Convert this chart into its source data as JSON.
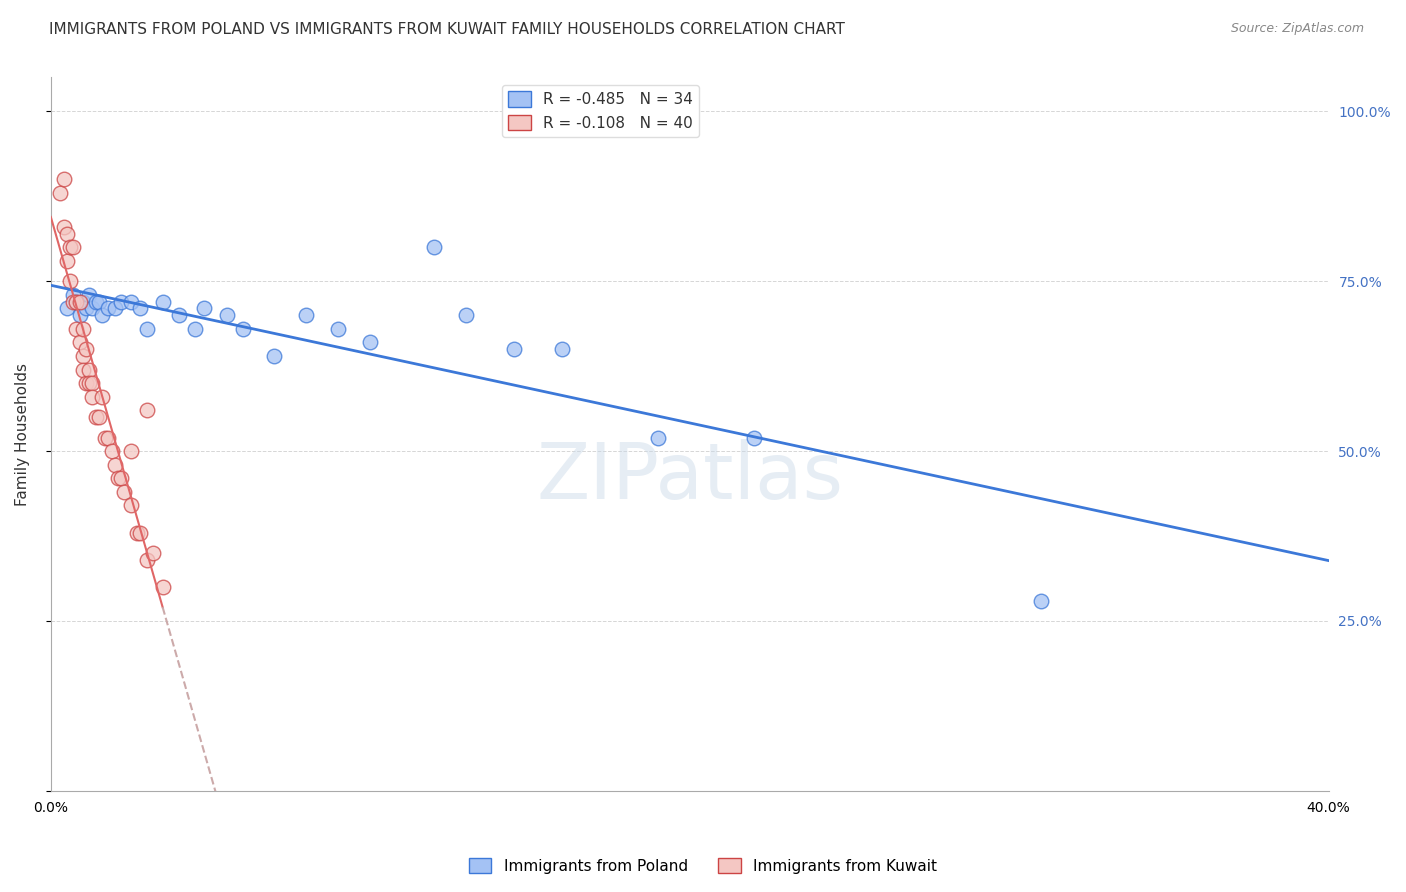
{
  "title": "IMMIGRANTS FROM POLAND VS IMMIGRANTS FROM KUWAIT FAMILY HOUSEHOLDS CORRELATION CHART",
  "source": "Source: ZipAtlas.com",
  "ylabel": "Family Households",
  "xlim": [
    0.0,
    0.4
  ],
  "ylim": [
    0.0,
    1.05
  ],
  "y_ticks": [
    0.0,
    0.25,
    0.5,
    0.75,
    1.0
  ],
  "y_tick_labels": [
    "",
    "25.0%",
    "50.0%",
    "75.0%",
    "100.0%"
  ],
  "poland_R": -0.485,
  "poland_N": 34,
  "kuwait_R": -0.108,
  "kuwait_N": 40,
  "poland_face_color": "#a4c2f4",
  "poland_edge_color": "#3c78d8",
  "kuwait_face_color": "#f4c7c3",
  "kuwait_edge_color": "#cc4444",
  "poland_line_color": "#3c78d8",
  "kuwait_solid_color": "#e06666",
  "kuwait_dash_color": "#ccaaaa",
  "poland_x": [
    0.005,
    0.007,
    0.008,
    0.009,
    0.01,
    0.011,
    0.012,
    0.013,
    0.014,
    0.015,
    0.016,
    0.018,
    0.02,
    0.022,
    0.025,
    0.028,
    0.03,
    0.035,
    0.04,
    0.045,
    0.048,
    0.055,
    0.06,
    0.07,
    0.08,
    0.09,
    0.1,
    0.12,
    0.13,
    0.145,
    0.16,
    0.19,
    0.22,
    0.31
  ],
  "poland_y": [
    0.71,
    0.73,
    0.72,
    0.7,
    0.72,
    0.71,
    0.73,
    0.71,
    0.72,
    0.72,
    0.7,
    0.71,
    0.71,
    0.72,
    0.72,
    0.71,
    0.68,
    0.72,
    0.7,
    0.68,
    0.71,
    0.7,
    0.68,
    0.64,
    0.7,
    0.68,
    0.66,
    0.8,
    0.7,
    0.65,
    0.65,
    0.52,
    0.52,
    0.28
  ],
  "kuwait_x": [
    0.003,
    0.004,
    0.004,
    0.005,
    0.005,
    0.006,
    0.006,
    0.007,
    0.007,
    0.008,
    0.008,
    0.009,
    0.009,
    0.01,
    0.01,
    0.01,
    0.011,
    0.011,
    0.012,
    0.012,
    0.013,
    0.013,
    0.014,
    0.015,
    0.016,
    0.017,
    0.018,
    0.019,
    0.02,
    0.021,
    0.022,
    0.023,
    0.025,
    0.027,
    0.028,
    0.03,
    0.032,
    0.035,
    0.025,
    0.03
  ],
  "kuwait_y": [
    0.88,
    0.9,
    0.83,
    0.82,
    0.78,
    0.8,
    0.75,
    0.8,
    0.72,
    0.72,
    0.68,
    0.72,
    0.66,
    0.68,
    0.64,
    0.62,
    0.65,
    0.6,
    0.62,
    0.6,
    0.6,
    0.58,
    0.55,
    0.55,
    0.58,
    0.52,
    0.52,
    0.5,
    0.48,
    0.46,
    0.46,
    0.44,
    0.42,
    0.38,
    0.38,
    0.34,
    0.35,
    0.3,
    0.5,
    0.56
  ],
  "background_color": "#ffffff",
  "grid_color": "#cccccc",
  "title_color": "#333333",
  "source_color": "#888888",
  "right_axis_color": "#4472c4",
  "watermark_text": "ZIPatlas",
  "watermark_color": "#c8d8e8",
  "watermark_fontsize": 56,
  "watermark_alpha": 0.45,
  "title_fontsize": 11,
  "ylabel_fontsize": 11,
  "tick_fontsize": 10,
  "legend_fontsize": 11,
  "marker_size": 110
}
